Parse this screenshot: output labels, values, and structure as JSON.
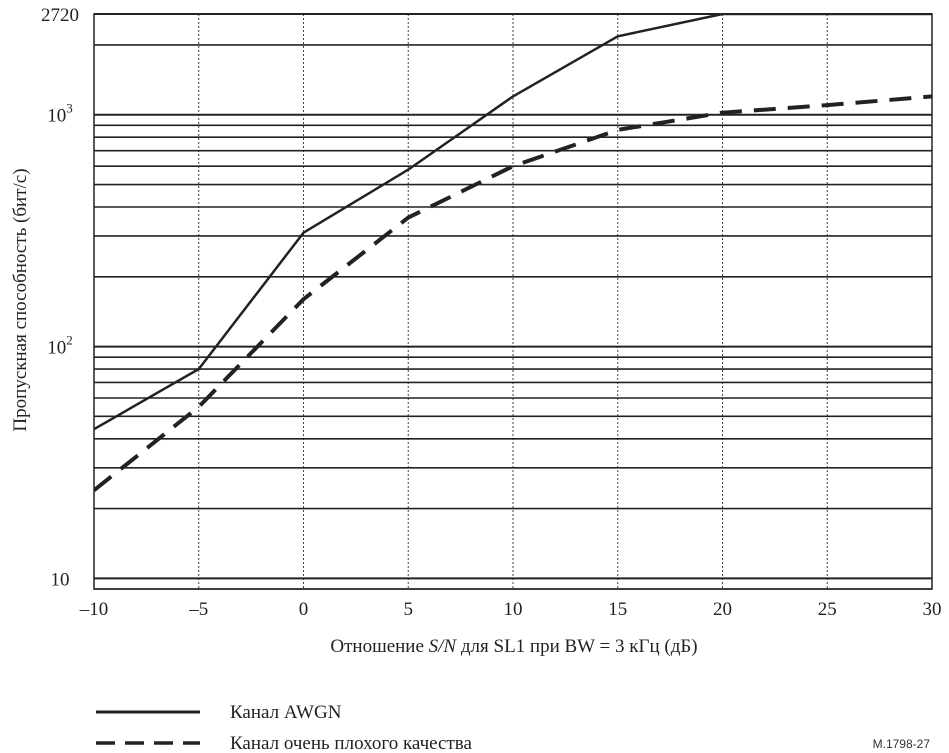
{
  "chart_data": {
    "type": "line",
    "xlabel": {
      "prefix": "Отношение ",
      "italic": "S/N",
      "suffix": " для  SL1 при  BW = 3 кГц (дБ)"
    },
    "ylabel": "Пропускная способность  (бит/с)",
    "xlim": [
      -10,
      30
    ],
    "ylim": [
      9,
      2720
    ],
    "yscale": "log",
    "grid": true,
    "legend_position": "bottom-left",
    "x_ticks": [
      "–10",
      "–5",
      "0",
      "5",
      "10",
      "15",
      "20",
      "25",
      "30"
    ],
    "y_ticks": [
      {
        "value": 10,
        "base": "10",
        "exp": ""
      },
      {
        "value": 100,
        "base": "10",
        "exp": "2"
      },
      {
        "value": 1000,
        "base": "10",
        "exp": "3"
      },
      {
        "value": 2720,
        "base": "2720",
        "exp": ""
      }
    ],
    "series": [
      {
        "name": "Канал AWGN",
        "style": "solid",
        "x": [
          -10,
          -5,
          0,
          5,
          10,
          15,
          20,
          30
        ],
        "y": [
          44,
          80,
          310,
          580,
          1200,
          2180,
          2720,
          2720
        ]
      },
      {
        "name": "Канал очень плохого качества",
        "style": "dashed",
        "x": [
          -10,
          -5,
          0,
          5,
          10,
          15,
          20,
          25,
          30
        ],
        "y": [
          24,
          55,
          160,
          360,
          600,
          860,
          1020,
          1100,
          1200
        ]
      }
    ]
  },
  "figure_id": "M.1798-27"
}
